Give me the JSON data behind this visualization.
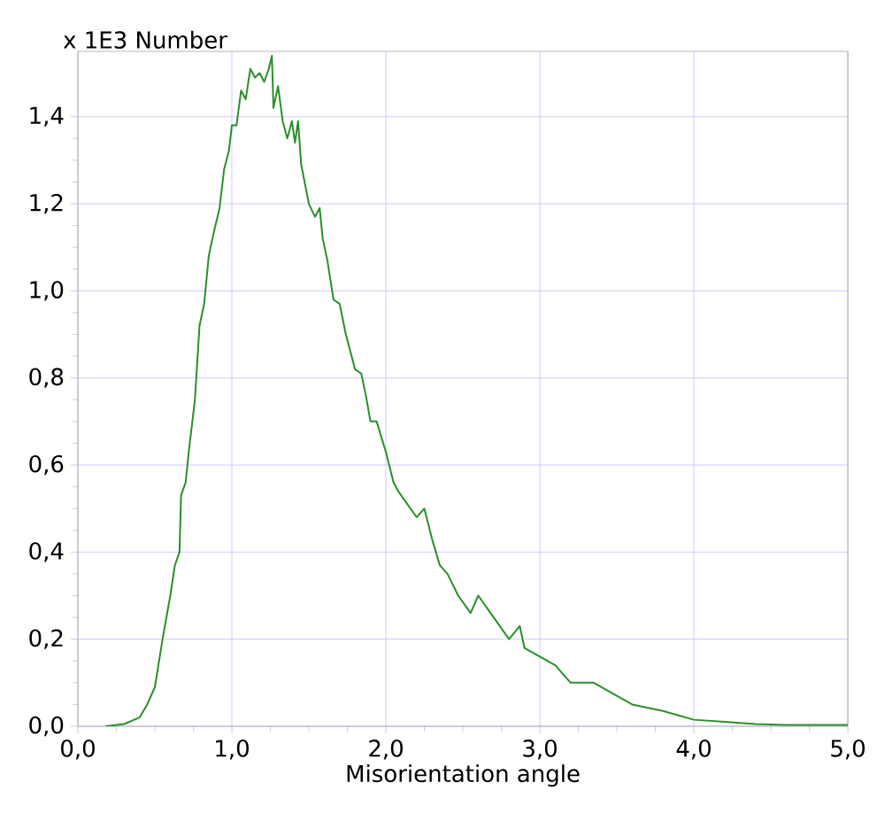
{
  "chart_data": {
    "type": "line",
    "xlabel": "Misorientation angle",
    "ylabel": "x 1E3 Number",
    "xlim": [
      0,
      5
    ],
    "ylim": [
      0,
      1.55
    ],
    "xticks": [
      {
        "value": 0,
        "label": "0,0"
      },
      {
        "value": 1,
        "label": "1,0"
      },
      {
        "value": 2,
        "label": "2,0"
      },
      {
        "value": 3,
        "label": "3,0"
      },
      {
        "value": 4,
        "label": "4,0"
      },
      {
        "value": 5,
        "label": "5,0"
      }
    ],
    "yticks": [
      {
        "value": 0,
        "label": "0,0"
      },
      {
        "value": 0.2,
        "label": "0,2"
      },
      {
        "value": 0.4,
        "label": "0,4"
      },
      {
        "value": 0.6,
        "label": "0,6"
      },
      {
        "value": 0.8,
        "label": "0,8"
      },
      {
        "value": 1.0,
        "label": "1,0"
      },
      {
        "value": 1.2,
        "label": "1,2"
      },
      {
        "value": 1.4,
        "label": "1,4"
      }
    ],
    "grid": true,
    "marker": "none",
    "line_style": "solid",
    "series": [
      {
        "color": "#2a8f2a",
        "x": [
          0.18,
          0.3,
          0.4,
          0.45,
          0.5,
          0.55,
          0.6,
          0.63,
          0.66,
          0.67,
          0.7,
          0.72,
          0.76,
          0.79,
          0.82,
          0.85,
          0.88,
          0.92,
          0.95,
          0.98,
          1.0,
          1.03,
          1.06,
          1.09,
          1.12,
          1.15,
          1.18,
          1.21,
          1.24,
          1.26,
          1.27,
          1.3,
          1.33,
          1.36,
          1.39,
          1.41,
          1.43,
          1.45,
          1.5,
          1.54,
          1.57,
          1.59,
          1.62,
          1.66,
          1.7,
          1.74,
          1.8,
          1.84,
          1.87,
          1.9,
          1.94,
          2.0,
          2.05,
          2.08,
          2.12,
          2.2,
          2.25,
          2.3,
          2.35,
          2.4,
          2.47,
          2.55,
          2.6,
          2.7,
          2.8,
          2.87,
          2.9,
          3.0,
          3.1,
          3.2,
          3.35,
          3.5,
          3.6,
          3.8,
          4.0,
          4.2,
          4.4,
          4.6,
          5.0
        ],
        "values": [
          0,
          0.005,
          0.02,
          0.05,
          0.09,
          0.2,
          0.3,
          0.37,
          0.4,
          0.53,
          0.56,
          0.63,
          0.75,
          0.92,
          0.97,
          1.08,
          1.13,
          1.19,
          1.28,
          1.32,
          1.38,
          1.38,
          1.46,
          1.44,
          1.51,
          1.49,
          1.5,
          1.48,
          1.51,
          1.54,
          1.42,
          1.47,
          1.39,
          1.35,
          1.39,
          1.34,
          1.39,
          1.29,
          1.2,
          1.17,
          1.19,
          1.12,
          1.07,
          0.98,
          0.97,
          0.9,
          0.82,
          0.81,
          0.76,
          0.7,
          0.7,
          0.63,
          0.56,
          0.54,
          0.52,
          0.48,
          0.5,
          0.43,
          0.37,
          0.35,
          0.3,
          0.26,
          0.3,
          0.25,
          0.2,
          0.23,
          0.18,
          0.16,
          0.14,
          0.1,
          0.1,
          0.07,
          0.05,
          0.035,
          0.015,
          0.01,
          0.005,
          0.003,
          0.003
        ]
      }
    ]
  }
}
